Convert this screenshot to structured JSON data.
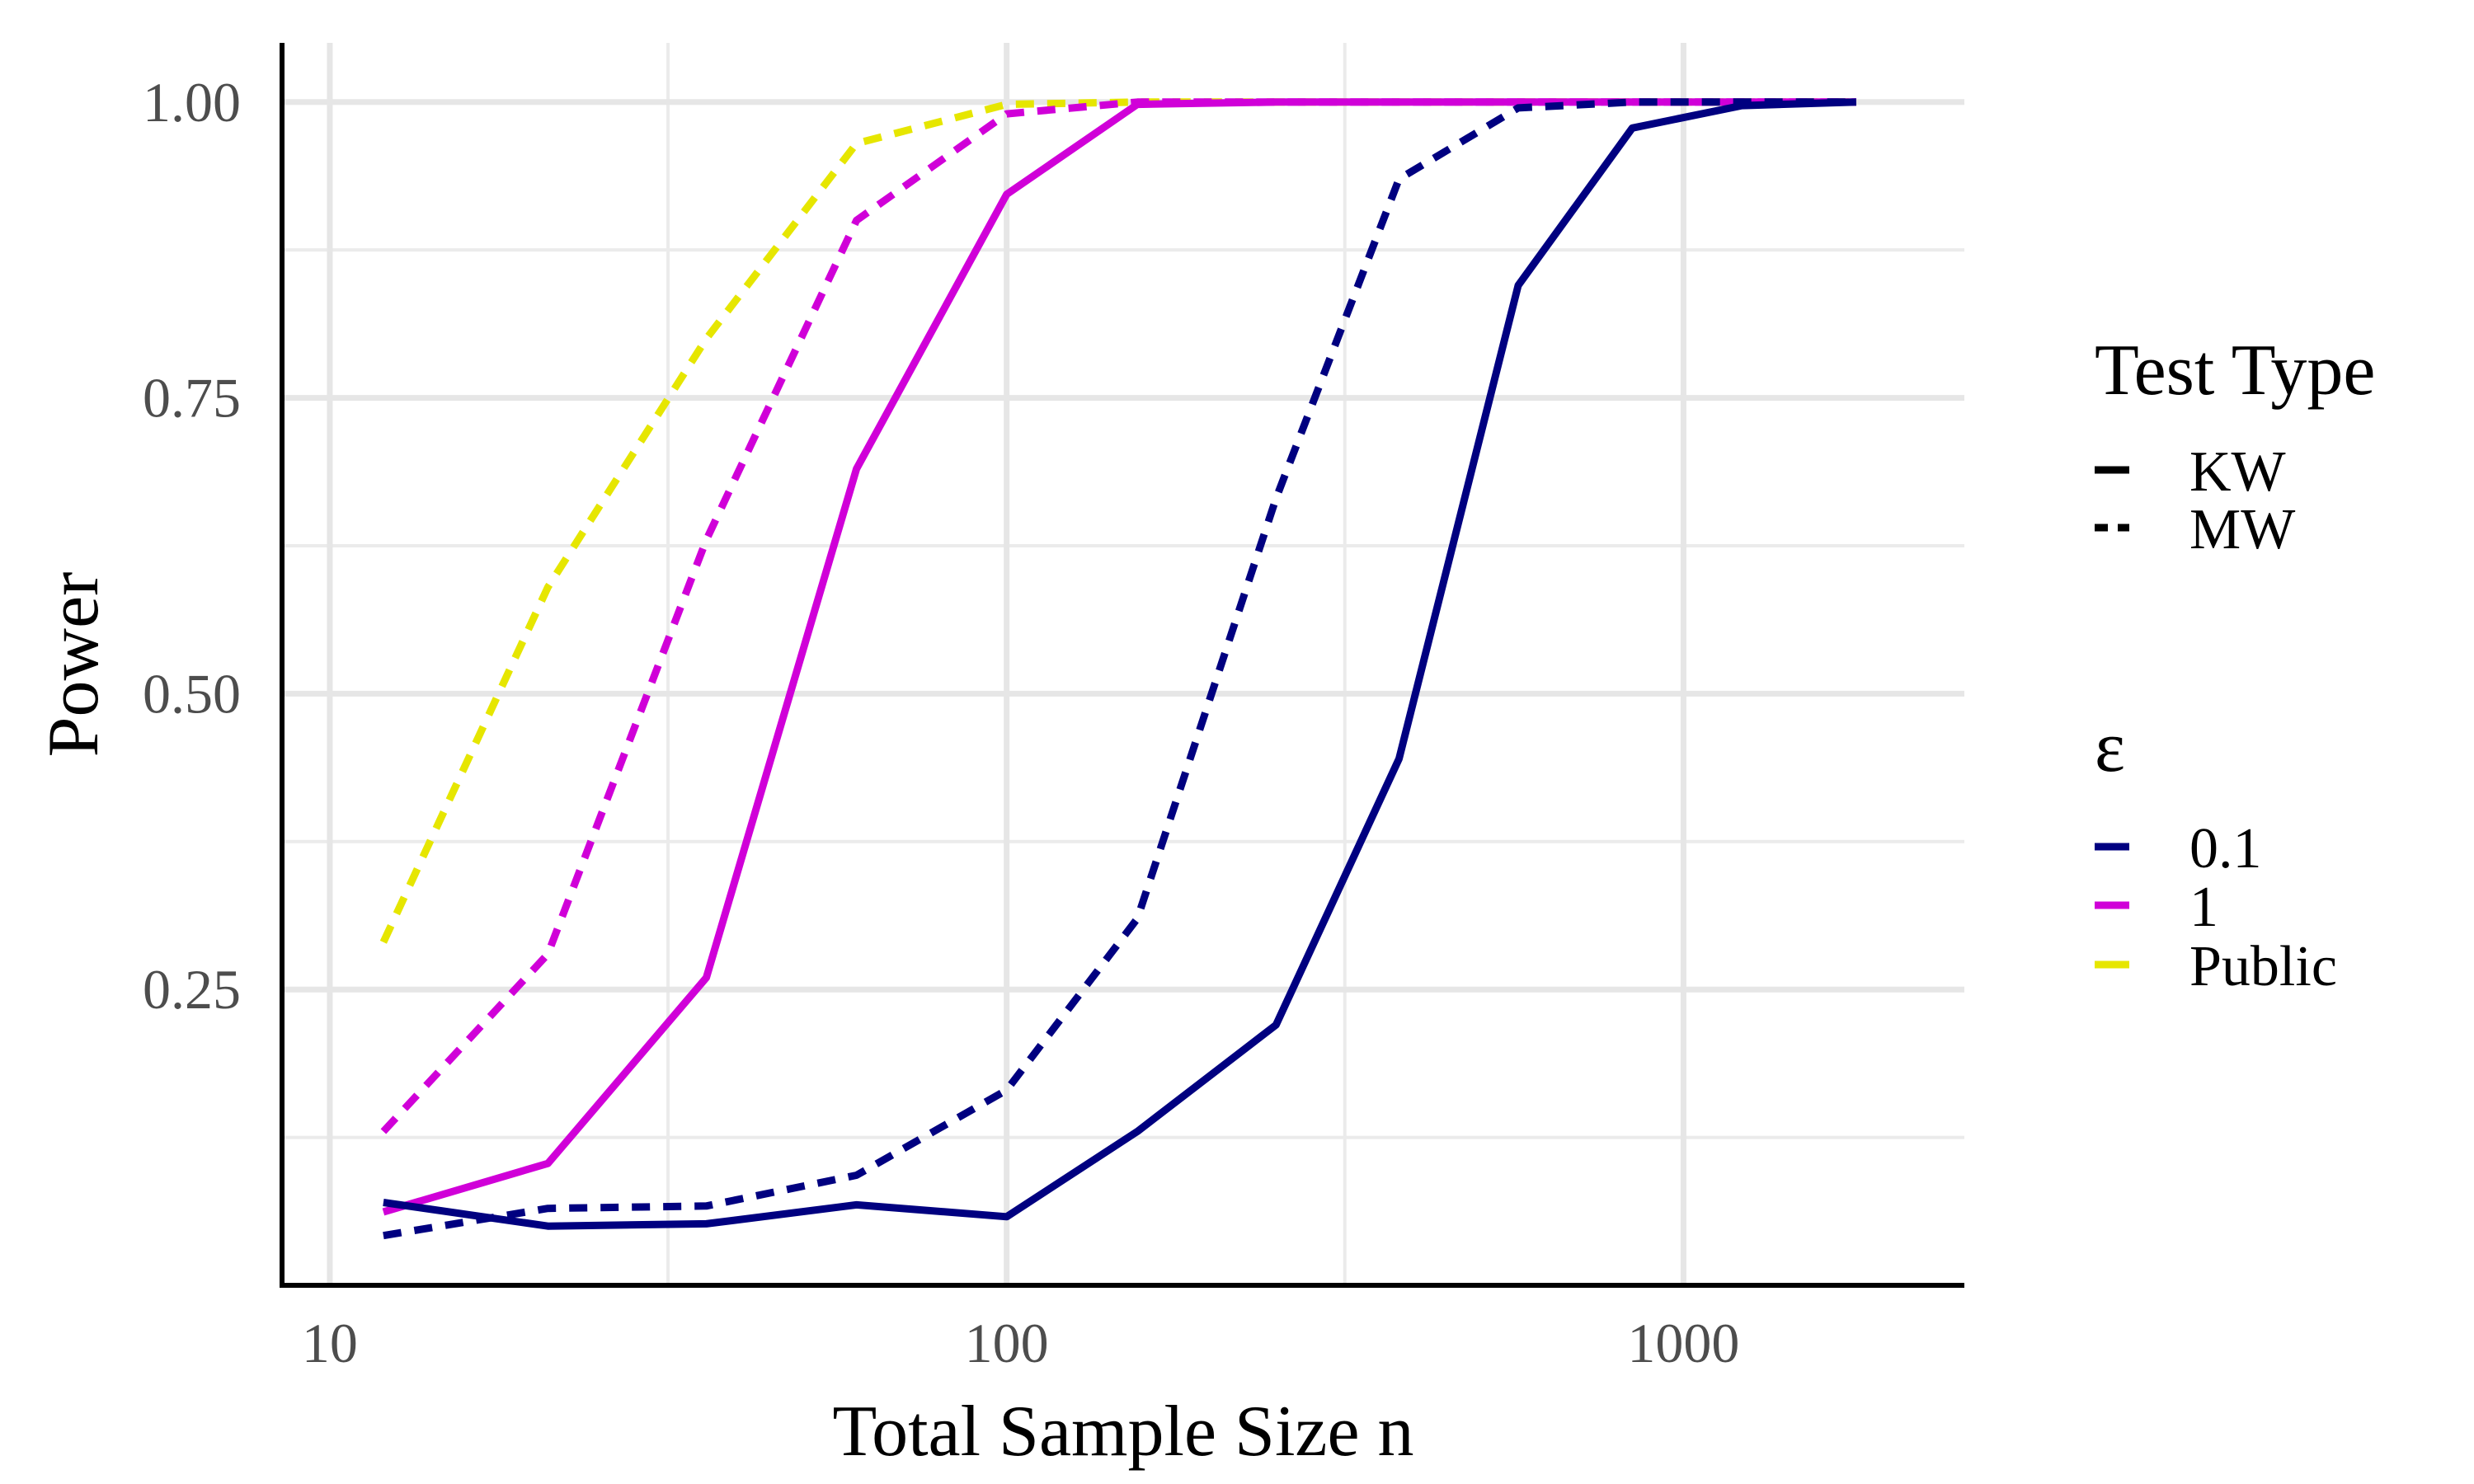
{
  "chart_data": {
    "type": "line",
    "xlabel": "Total Sample Size n",
    "ylabel": "Power",
    "x_scale": "log10",
    "xlim": [
      8.5,
      2600
    ],
    "ylim": [
      0,
      1.05
    ],
    "x_ticks": [
      10,
      100,
      1000
    ],
    "x_tick_labels": [
      "10",
      "100",
      "1000"
    ],
    "x_minor_gridlines": [
      31.6,
      316
    ],
    "y_ticks": [
      0.25,
      0.5,
      0.75,
      1.0
    ],
    "y_tick_labels": [
      "0.25",
      "0.50",
      "0.75",
      "1.00"
    ],
    "y_minor_gridlines": [
      0.125,
      0.375,
      0.625,
      0.875
    ],
    "grid": true,
    "legend_placement": "right",
    "legend": {
      "test_type_title": "Test Type",
      "test_types": [
        {
          "label": "KW",
          "style": "solid"
        },
        {
          "label": "MW",
          "style": "dashed"
        }
      ],
      "epsilon_title": "ε",
      "epsilons": [
        {
          "label": "0.1",
          "color": "#000080"
        },
        {
          "label": "1",
          "color": "#d000d8"
        },
        {
          "label": "Public",
          "color": "#e6e600"
        }
      ]
    },
    "series": [
      {
        "epsilon": "0.1",
        "test": "KW",
        "color": "#000080",
        "dashed": false,
        "x": [
          12,
          21,
          36,
          60,
          100,
          156,
          250,
          380,
          570,
          840,
          1220,
          1800
        ],
        "y": [
          0.07,
          0.05,
          0.052,
          0.068,
          0.058,
          0.13,
          0.22,
          0.445,
          0.845,
          0.978,
          0.997,
          1.0
        ]
      },
      {
        "epsilon": "0.1",
        "test": "MW",
        "color": "#000080",
        "dashed": true,
        "x": [
          12,
          21,
          36,
          60,
          100,
          156,
          250,
          380,
          570,
          840,
          1220,
          1800
        ],
        "y": [
          0.042,
          0.065,
          0.067,
          0.093,
          0.165,
          0.31,
          0.665,
          0.935,
          0.995,
          1.0,
          1.0,
          1.0
        ]
      },
      {
        "epsilon": "1",
        "test": "KW",
        "color": "#d000d8",
        "dashed": false,
        "x": [
          12,
          21,
          36,
          60,
          100,
          156,
          250,
          380,
          570,
          840,
          1220,
          1800
        ],
        "y": [
          0.062,
          0.103,
          0.26,
          0.69,
          0.922,
          0.998,
          1.0,
          1.0,
          1.0,
          1.0,
          1.0,
          1.0
        ]
      },
      {
        "epsilon": "1",
        "test": "MW",
        "color": "#d000d8",
        "dashed": true,
        "x": [
          12,
          21,
          36,
          60,
          100,
          156,
          250,
          380,
          570,
          840,
          1220,
          1800
        ],
        "y": [
          0.13,
          0.28,
          0.63,
          0.9,
          0.99,
          1.0,
          1.0,
          1.0,
          1.0,
          1.0,
          1.0,
          1.0
        ]
      },
      {
        "epsilon": "Public",
        "test": "MW",
        "color": "#e6e600",
        "dashed": true,
        "x": [
          12,
          21,
          36,
          60,
          100,
          156,
          250,
          380,
          570,
          840,
          1220,
          1800
        ],
        "y": [
          0.29,
          0.59,
          0.8,
          0.965,
          0.998,
          1.0,
          1.0,
          1.0,
          1.0,
          1.0,
          1.0,
          1.0
        ]
      }
    ]
  }
}
